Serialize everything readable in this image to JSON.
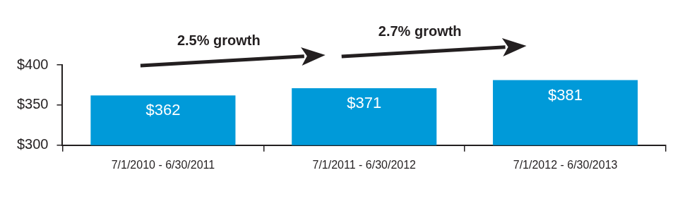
{
  "chart_data": {
    "type": "bar",
    "categories": [
      "7/1/2010 - 6/30/2011",
      "7/1/2011 - 6/30/2012",
      "7/1/2012 - 6/30/2013"
    ],
    "values": [
      362,
      371,
      381
    ],
    "value_labels": [
      "$362",
      "$371",
      "$381"
    ],
    "color": "#009ad9",
    "ylim": [
      300,
      400
    ],
    "yticks": [
      {
        "value": 300,
        "label": "$300"
      },
      {
        "value": 350,
        "label": "$350"
      },
      {
        "value": 400,
        "label": "$400"
      }
    ],
    "grid": false,
    "data_labels": true,
    "annotations": [
      "2.5% growth",
      "2.7% growth"
    ]
  }
}
